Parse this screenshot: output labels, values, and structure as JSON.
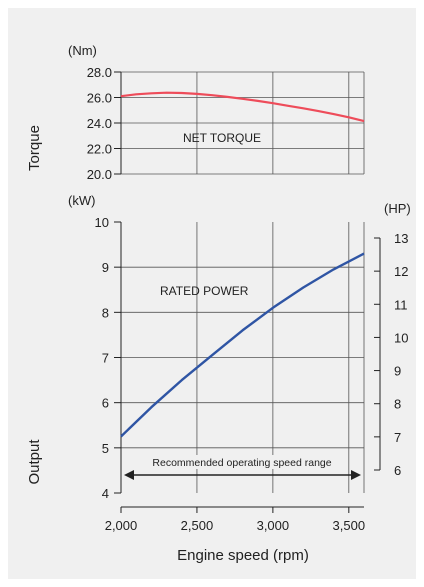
{
  "chart_data": {
    "type": "line",
    "xlabel": "Engine speed (rpm)",
    "x_ticks": [
      2000,
      2500,
      3000,
      3500
    ],
    "x_tick_labels": [
      "2,000",
      "2,500",
      "3,000",
      "3,500"
    ],
    "xlim": [
      2000,
      3600
    ],
    "torque_panel": {
      "ylabel": "Torque",
      "unit": "(Nm)",
      "ylim": [
        20.0,
        28.0
      ],
      "y_ticks": [
        20.0,
        22.0,
        24.0,
        26.0,
        28.0
      ],
      "y_tick_labels": [
        "20.0",
        "22.0",
        "24.0",
        "26.0",
        "28.0"
      ],
      "series": [
        {
          "name": "NET TORQUE",
          "color": "#ee4c5a",
          "x": [
            2000,
            2100,
            2200,
            2300,
            2400,
            2500,
            2600,
            2700,
            2800,
            2900,
            3000,
            3100,
            3200,
            3300,
            3400,
            3500,
            3600
          ],
          "y": [
            26.1,
            26.25,
            26.33,
            26.38,
            26.35,
            26.28,
            26.18,
            26.05,
            25.9,
            25.73,
            25.55,
            25.35,
            25.15,
            24.93,
            24.7,
            24.45,
            24.15
          ]
        }
      ]
    },
    "output_panel": {
      "ylabel": "Output",
      "unit_left": "(kW)",
      "unit_right": "(HP)",
      "ylim": [
        4,
        10
      ],
      "y_ticks": [
        4,
        5,
        6,
        7,
        8,
        9,
        10
      ],
      "y_tick_labels": [
        "4",
        "5",
        "6",
        "7",
        "8",
        "9",
        "10"
      ],
      "hp_ticks": [
        6,
        7,
        8,
        9,
        10,
        11,
        12,
        13
      ],
      "hp_tick_labels": [
        "6",
        "7",
        "8",
        "9",
        "10",
        "11",
        "12",
        "13"
      ],
      "series": [
        {
          "name": "RATED POWER",
          "color": "#2f55a4",
          "x": [
            2000,
            2200,
            2400,
            2600,
            2800,
            3000,
            3200,
            3400,
            3600
          ],
          "y": [
            5.25,
            5.9,
            6.5,
            7.05,
            7.6,
            8.1,
            8.55,
            8.95,
            9.3
          ]
        }
      ],
      "annotation": {
        "text": "Recommended operating speed range",
        "x_start": 2000,
        "x_end": 3600
      }
    }
  }
}
